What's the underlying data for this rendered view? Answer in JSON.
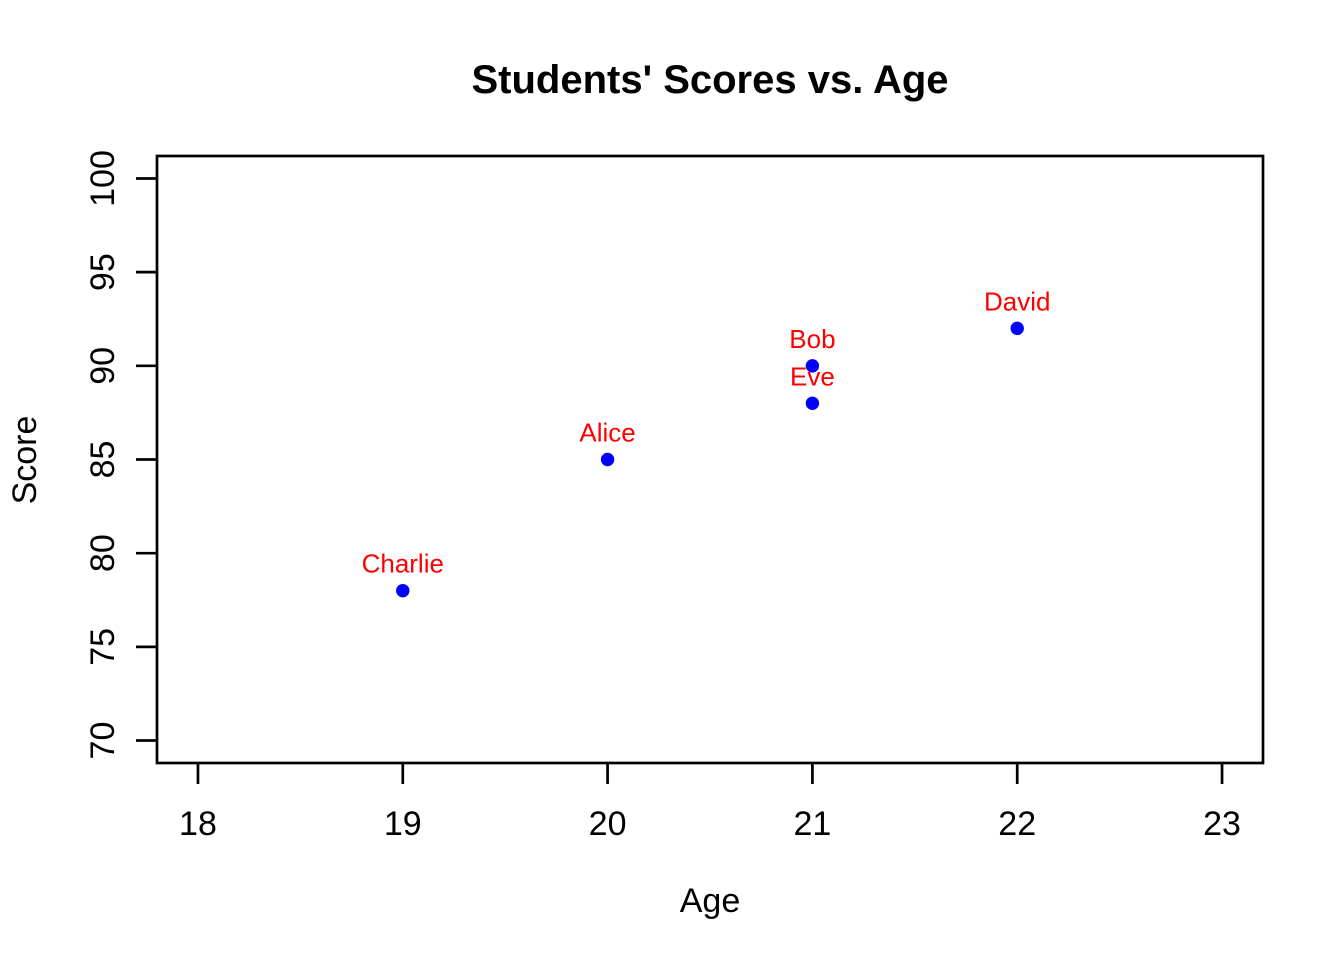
{
  "page": {
    "background": "#FFFFFF"
  },
  "chart_data": {
    "type": "scatter",
    "title": "Students' Scores vs. Age",
    "xlabel": "Age",
    "ylabel": "Score",
    "points": [
      {
        "label": "Charlie",
        "x": 19,
        "y": 78
      },
      {
        "label": "Alice",
        "x": 20,
        "y": 85
      },
      {
        "label": "Bob",
        "x": 21,
        "y": 90
      },
      {
        "label": "Eve",
        "x": 21,
        "y": 88
      },
      {
        "label": "David",
        "x": 22,
        "y": 92
      }
    ],
    "x_ticks": [
      18,
      19,
      20,
      21,
      22,
      23
    ],
    "y_ticks": [
      70,
      75,
      80,
      85,
      90,
      95,
      100
    ],
    "xlim": [
      17.8,
      23.2
    ],
    "ylim": [
      68.8,
      101.2
    ],
    "point_color": "#0000FF",
    "point_label_color": "#FF0000",
    "axis_color": "#000000",
    "background_color": "#FFFFFF",
    "grid": false,
    "legend": "none",
    "y_tick_label_rotation": -90
  }
}
